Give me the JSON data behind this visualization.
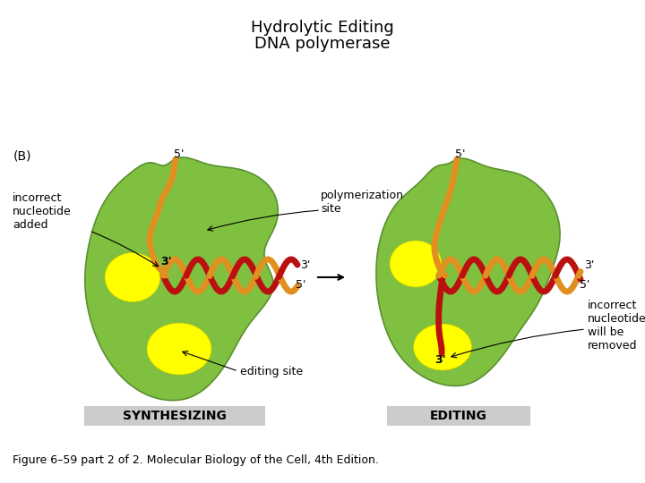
{
  "title_line1": "Hydrolytic Editing",
  "title_line2": "DNA polymerase",
  "title_fontsize": 13,
  "label_B": "(B)",
  "label_synthesizing": "SYNTHESIZING",
  "label_editing": "EDITING",
  "label_incorrect_nucleotide_added": "incorrect\nnucleotide\nadded",
  "label_polymerization_site": "polymerization\nsite",
  "label_editing_site": "editing site",
  "label_incorrect_nucleotide_removed": "incorrect\nnucleotide\nwill be\nremoved",
  "figure_caption": "Figure 6–59 part 2 of 2. Molecular Biology of the Cell, 4th Edition.",
  "bg_color": "#ffffff",
  "enzyme_color": "#80c040",
  "enzyme_edge_color": "#5a9030",
  "yellow_spot_color": "#ffff00",
  "yellow_spot_edge": "#c8c800",
  "dna_orange_color": "#e09020",
  "dna_red_color": "#bb1010",
  "text_color": "#000000",
  "label_bg_color": "#cccccc",
  "small_fontsize": 9,
  "label_fontsize": 10,
  "caption_fontsize": 9
}
